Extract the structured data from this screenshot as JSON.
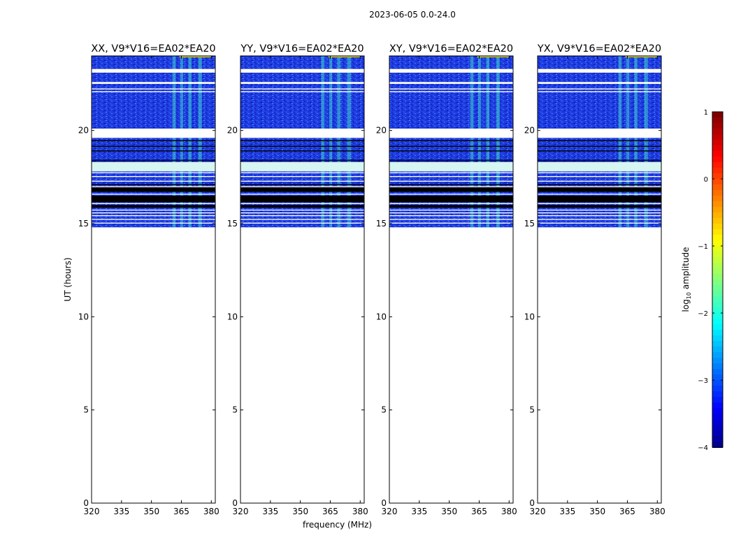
{
  "figure_title": "2023-06-05 0.0-24.0",
  "chart_data": {
    "type": "heatmap",
    "title": "2023-06-05 0.0-24.0",
    "xlabel": "frequency (MHz)",
    "ylabel": "UT (hours)",
    "xlim": [
      320,
      382
    ],
    "ylim": [
      0,
      24
    ],
    "xticks": [
      320,
      335,
      350,
      365,
      380
    ],
    "yticks": [
      0,
      5,
      10,
      15,
      20
    ],
    "panels": [
      {
        "title": "XX, V9*V16=EA02*EA20",
        "pol": "XX"
      },
      {
        "title": "YY, V9*V16=EA02*EA20",
        "pol": "YY"
      },
      {
        "title": "XY, V9*V16=EA02*EA20",
        "pol": "XY"
      },
      {
        "title": "YX, V9*V16=EA02*EA20",
        "pol": "YX"
      }
    ],
    "data_time_range_hours": [
      14.8,
      24.0
    ],
    "rfi_band_mhz": [
      360,
      380
    ],
    "colorbar": {
      "label": "log10 amplitude",
      "label_base": "log",
      "label_sub": "10",
      "label_rest": "amplitude",
      "range": [
        -4,
        1
      ],
      "ticks": [
        1,
        0,
        -1,
        -2,
        -3,
        -4
      ],
      "tick_labels": [
        "1",
        "0",
        "−1",
        "−2",
        "−3",
        "−4"
      ],
      "colormap": "jet"
    }
  }
}
